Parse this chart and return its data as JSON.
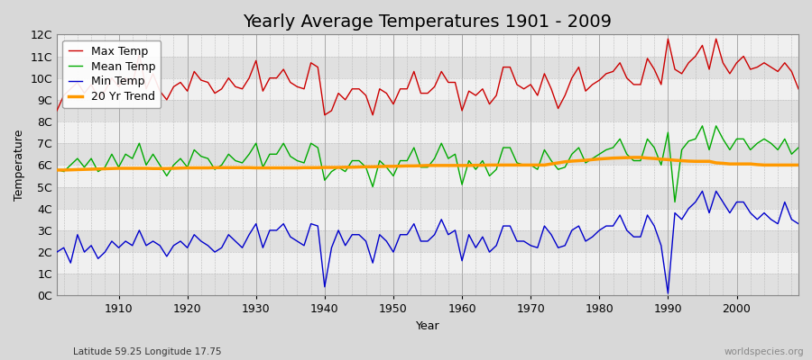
{
  "title": "Yearly Average Temperatures 1901 - 2009",
  "xlabel": "Year",
  "ylabel": "Temperature",
  "subtitle": "Latitude 59.25 Longitude 17.75",
  "watermark": "worldspecies.org",
  "years": [
    1901,
    1902,
    1903,
    1904,
    1905,
    1906,
    1907,
    1908,
    1909,
    1910,
    1911,
    1912,
    1913,
    1914,
    1915,
    1916,
    1917,
    1918,
    1919,
    1920,
    1921,
    1922,
    1923,
    1924,
    1925,
    1926,
    1927,
    1928,
    1929,
    1930,
    1931,
    1932,
    1933,
    1934,
    1935,
    1936,
    1937,
    1938,
    1939,
    1940,
    1941,
    1942,
    1943,
    1944,
    1945,
    1946,
    1947,
    1948,
    1949,
    1950,
    1951,
    1952,
    1953,
    1954,
    1955,
    1956,
    1957,
    1958,
    1959,
    1960,
    1961,
    1962,
    1963,
    1964,
    1965,
    1966,
    1967,
    1968,
    1969,
    1970,
    1971,
    1972,
    1973,
    1974,
    1975,
    1976,
    1977,
    1978,
    1979,
    1980,
    1981,
    1982,
    1983,
    1984,
    1985,
    1986,
    1987,
    1988,
    1989,
    1990,
    1991,
    1992,
    1993,
    1994,
    1995,
    1996,
    1997,
    1998,
    1999,
    2000,
    2001,
    2002,
    2003,
    2004,
    2005,
    2006,
    2007,
    2008,
    2009
  ],
  "max_temp": [
    8.5,
    9.2,
    9.5,
    9.8,
    9.3,
    9.7,
    9.1,
    9.4,
    10.0,
    9.6,
    10.0,
    9.7,
    11.1,
    9.5,
    10.2,
    9.4,
    9.0,
    9.6,
    9.8,
    9.4,
    10.3,
    9.9,
    9.8,
    9.3,
    9.5,
    10.0,
    9.6,
    9.5,
    10.0,
    10.8,
    9.4,
    10.0,
    10.0,
    10.4,
    9.8,
    9.6,
    9.5,
    10.7,
    10.5,
    8.3,
    8.5,
    9.3,
    9.0,
    9.5,
    9.5,
    9.2,
    8.3,
    9.5,
    9.3,
    8.8,
    9.5,
    9.5,
    10.3,
    9.3,
    9.3,
    9.6,
    10.3,
    9.8,
    9.8,
    8.5,
    9.4,
    9.2,
    9.5,
    8.8,
    9.2,
    10.5,
    10.5,
    9.7,
    9.5,
    9.7,
    9.2,
    10.2,
    9.5,
    8.6,
    9.2,
    10.0,
    10.5,
    9.4,
    9.7,
    9.9,
    10.2,
    10.3,
    10.7,
    10.0,
    9.7,
    9.7,
    10.9,
    10.4,
    9.7,
    11.8,
    10.4,
    10.2,
    10.7,
    11.0,
    11.5,
    10.4,
    11.8,
    10.7,
    10.2,
    10.7,
    11.0,
    10.4,
    10.5,
    10.7,
    10.5,
    10.3,
    10.7,
    10.3,
    9.5
  ],
  "mean_temp": [
    5.8,
    5.7,
    6.0,
    6.3,
    5.9,
    6.3,
    5.7,
    5.9,
    6.5,
    5.9,
    6.5,
    6.3,
    7.0,
    6.0,
    6.5,
    6.0,
    5.5,
    6.0,
    6.3,
    5.9,
    6.7,
    6.4,
    6.3,
    5.8,
    6.0,
    6.5,
    6.2,
    6.1,
    6.5,
    7.0,
    5.9,
    6.5,
    6.5,
    7.0,
    6.4,
    6.2,
    6.1,
    7.0,
    6.8,
    5.3,
    5.7,
    5.9,
    5.7,
    6.2,
    6.2,
    5.9,
    5.0,
    6.2,
    5.9,
    5.5,
    6.2,
    6.2,
    6.8,
    5.9,
    5.9,
    6.3,
    7.0,
    6.3,
    6.5,
    5.1,
    6.2,
    5.8,
    6.2,
    5.5,
    5.8,
    6.8,
    6.8,
    6.1,
    6.0,
    6.0,
    5.8,
    6.7,
    6.2,
    5.8,
    5.9,
    6.5,
    6.8,
    6.1,
    6.3,
    6.5,
    6.7,
    6.8,
    7.2,
    6.5,
    6.2,
    6.2,
    7.2,
    6.8,
    6.0,
    7.5,
    4.3,
    6.7,
    7.1,
    7.2,
    7.8,
    6.7,
    7.8,
    7.2,
    6.7,
    7.2,
    7.2,
    6.7,
    7.0,
    7.2,
    7.0,
    6.7,
    7.2,
    6.5,
    6.8
  ],
  "min_temp": [
    2.0,
    2.2,
    1.5,
    2.8,
    2.0,
    2.3,
    1.7,
    2.0,
    2.5,
    2.2,
    2.5,
    2.3,
    3.0,
    2.3,
    2.5,
    2.3,
    1.8,
    2.3,
    2.5,
    2.2,
    2.8,
    2.5,
    2.3,
    2.0,
    2.2,
    2.8,
    2.5,
    2.2,
    2.8,
    3.3,
    2.2,
    3.0,
    3.0,
    3.3,
    2.7,
    2.5,
    2.3,
    3.3,
    3.2,
    0.4,
    2.2,
    3.0,
    2.3,
    2.8,
    2.8,
    2.5,
    1.5,
    2.8,
    2.5,
    2.0,
    2.8,
    2.8,
    3.3,
    2.5,
    2.5,
    2.8,
    3.5,
    2.8,
    3.0,
    1.6,
    2.8,
    2.2,
    2.7,
    2.0,
    2.3,
    3.2,
    3.2,
    2.5,
    2.5,
    2.3,
    2.2,
    3.2,
    2.8,
    2.2,
    2.3,
    3.0,
    3.2,
    2.5,
    2.7,
    3.0,
    3.2,
    3.2,
    3.7,
    3.0,
    2.7,
    2.7,
    3.7,
    3.2,
    2.3,
    0.1,
    3.8,
    3.5,
    4.0,
    4.3,
    4.8,
    3.8,
    4.8,
    4.3,
    3.8,
    4.3,
    4.3,
    3.8,
    3.5,
    3.8,
    3.5,
    3.3,
    4.3,
    3.5,
    3.3
  ],
  "trend_20yr": [
    5.77,
    5.77,
    5.78,
    5.79,
    5.8,
    5.81,
    5.82,
    5.83,
    5.84,
    5.85,
    5.85,
    5.85,
    5.85,
    5.85,
    5.84,
    5.84,
    5.84,
    5.85,
    5.86,
    5.87,
    5.87,
    5.87,
    5.87,
    5.88,
    5.88,
    5.88,
    5.88,
    5.88,
    5.88,
    5.87,
    5.87,
    5.87,
    5.87,
    5.87,
    5.87,
    5.87,
    5.88,
    5.88,
    5.88,
    5.89,
    5.89,
    5.89,
    5.9,
    5.9,
    5.91,
    5.92,
    5.92,
    5.93,
    5.94,
    5.94,
    5.95,
    5.96,
    5.96,
    5.97,
    5.98,
    5.98,
    5.98,
    5.98,
    5.98,
    5.98,
    5.98,
    5.99,
    5.99,
    6.0,
    6.0,
    6.0,
    6.0,
    6.0,
    6.0,
    6.0,
    6.0,
    6.0,
    6.05,
    6.1,
    6.15,
    6.18,
    6.2,
    6.22,
    6.25,
    6.28,
    6.3,
    6.32,
    6.33,
    6.34,
    6.35,
    6.35,
    6.32,
    6.3,
    6.27,
    6.25,
    6.22,
    6.2,
    6.18,
    6.17,
    6.17,
    6.17,
    6.1,
    6.08,
    6.05,
    6.05,
    6.05,
    6.05,
    6.02,
    6.0,
    6.0,
    6.0,
    6.0,
    6.0,
    6.0
  ],
  "colors": {
    "max_temp": "#cc0000",
    "mean_temp": "#00aa00",
    "min_temp": "#0000cc",
    "trend": "#ff9900"
  },
  "ylim": [
    0,
    12
  ],
  "yticks": [
    0,
    1,
    2,
    3,
    4,
    5,
    6,
    7,
    8,
    9,
    10,
    11,
    12
  ],
  "ytick_labels": [
    "0C",
    "1C",
    "2C",
    "3C",
    "4C",
    "5C",
    "6C",
    "7C",
    "8C",
    "9C",
    "10C",
    "11C",
    "12C"
  ],
  "bg_color": "#d8d8d8",
  "plot_bg_light": "#f0f0f0",
  "plot_bg_dark": "#e0e0e0",
  "grid_color": "#cccccc",
  "title_fontsize": 14,
  "axis_fontsize": 9,
  "legend_fontsize": 9
}
